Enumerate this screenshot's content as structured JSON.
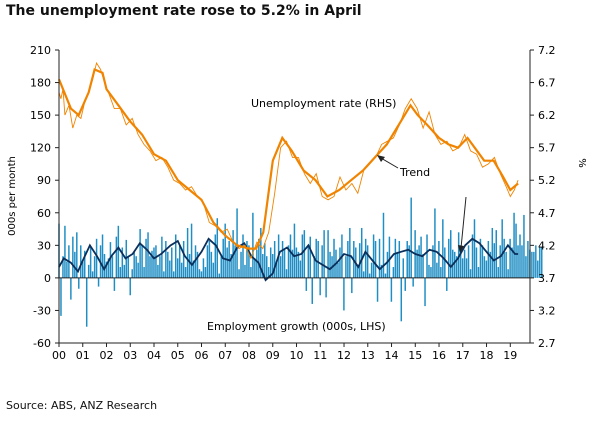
{
  "title": "The unemployment rate rose to 5.2% in April",
  "source": "Source: ABS, ANZ Research",
  "colors": {
    "unemployment": "#f08400",
    "employment_bars": "#1f8ec4",
    "trend_employment": "#0b2f5b",
    "axis": "#222222"
  },
  "chart_data": {
    "type": "bar+line",
    "title": "The unemployment rate rose to 5.2% in April",
    "xlabel": "",
    "ylabel_left": "000s per month",
    "ylabel_right": "%",
    "ylim_left": [
      -60,
      210
    ],
    "ylim_right": [
      2.7,
      7.2
    ],
    "yticks_left": [
      -60,
      -30,
      0,
      30,
      60,
      90,
      120,
      150,
      180,
      210
    ],
    "yticks_right": [
      2.7,
      3.2,
      3.7,
      4.2,
      4.7,
      5.2,
      5.7,
      6.2,
      6.7,
      7.2
    ],
    "xticks": [
      "00",
      "01",
      "02",
      "03",
      "04",
      "05",
      "06",
      "07",
      "08",
      "09",
      "10",
      "11",
      "12",
      "13",
      "14",
      "15",
      "16",
      "17",
      "18",
      "19"
    ],
    "x_range": [
      2000.0,
      2019.33
    ],
    "grid": false,
    "annotations": {
      "unemployment_label": "Unemployment rate (RHS)",
      "employment_label": "Employment growth (000s, LHS)",
      "trend_label": "Trend"
    },
    "series": [
      {
        "name": "Unemployment rate (RHS)",
        "axis": "right",
        "kind": "line",
        "trend_points": [
          [
            2000.0,
            6.75
          ],
          [
            2000.5,
            6.3
          ],
          [
            2000.83,
            6.2
          ],
          [
            2001.25,
            6.55
          ],
          [
            2001.5,
            6.9
          ],
          [
            2001.83,
            6.85
          ],
          [
            2002.0,
            6.6
          ],
          [
            2002.5,
            6.35
          ],
          [
            2003.0,
            6.1
          ],
          [
            2003.5,
            5.9
          ],
          [
            2004.0,
            5.6
          ],
          [
            2004.5,
            5.5
          ],
          [
            2005.0,
            5.2
          ],
          [
            2005.5,
            5.05
          ],
          [
            2006.0,
            4.9
          ],
          [
            2006.5,
            4.55
          ],
          [
            2007.0,
            4.35
          ],
          [
            2007.5,
            4.2
          ],
          [
            2008.0,
            4.15
          ],
          [
            2008.3,
            4.15
          ],
          [
            2008.6,
            4.4
          ],
          [
            2009.0,
            5.5
          ],
          [
            2009.4,
            5.85
          ],
          [
            2009.8,
            5.65
          ],
          [
            2010.3,
            5.35
          ],
          [
            2010.8,
            5.2
          ],
          [
            2011.3,
            4.95
          ],
          [
            2011.8,
            5.05
          ],
          [
            2012.3,
            5.2
          ],
          [
            2012.8,
            5.35
          ],
          [
            2013.3,
            5.55
          ],
          [
            2013.8,
            5.75
          ],
          [
            2014.3,
            6.05
          ],
          [
            2014.8,
            6.35
          ],
          [
            2015.1,
            6.2
          ],
          [
            2015.5,
            6.05
          ],
          [
            2016.0,
            5.85
          ],
          [
            2016.4,
            5.75
          ],
          [
            2016.8,
            5.7
          ],
          [
            2017.2,
            5.85
          ],
          [
            2017.5,
            5.7
          ],
          [
            2017.9,
            5.5
          ],
          [
            2018.3,
            5.5
          ],
          [
            2018.7,
            5.25
          ],
          [
            2019.0,
            5.05
          ],
          [
            2019.33,
            5.15
          ]
        ],
        "monthly_points": [
          [
            2000.0,
            6.55
          ],
          [
            2000.08,
            6.45
          ],
          [
            2000.17,
            6.6
          ],
          [
            2000.25,
            6.2
          ],
          [
            2000.42,
            6.35
          ],
          [
            2000.58,
            6.0
          ],
          [
            2000.75,
            6.2
          ],
          [
            2000.92,
            6.15
          ],
          [
            2001.08,
            6.4
          ],
          [
            2001.25,
            6.55
          ],
          [
            2001.42,
            6.75
          ],
          [
            2001.58,
            7.0
          ],
          [
            2001.75,
            6.9
          ],
          [
            2001.92,
            6.7
          ],
          [
            2002.08,
            6.55
          ],
          [
            2002.33,
            6.3
          ],
          [
            2002.58,
            6.3
          ],
          [
            2002.83,
            6.05
          ],
          [
            2003.08,
            6.15
          ],
          [
            2003.33,
            5.9
          ],
          [
            2003.58,
            5.75
          ],
          [
            2003.83,
            5.65
          ],
          [
            2004.08,
            5.5
          ],
          [
            2004.33,
            5.55
          ],
          [
            2004.58,
            5.4
          ],
          [
            2004.83,
            5.2
          ],
          [
            2005.08,
            5.15
          ],
          [
            2005.33,
            5.05
          ],
          [
            2005.58,
            5.1
          ],
          [
            2005.83,
            4.95
          ],
          [
            2006.08,
            4.85
          ],
          [
            2006.33,
            4.55
          ],
          [
            2006.58,
            4.5
          ],
          [
            2006.83,
            4.4
          ],
          [
            2007.08,
            4.45
          ],
          [
            2007.33,
            4.25
          ],
          [
            2007.58,
            4.15
          ],
          [
            2007.83,
            4.2
          ],
          [
            2008.08,
            4.0
          ],
          [
            2008.33,
            4.25
          ],
          [
            2008.58,
            4.15
          ],
          [
            2008.83,
            4.4
          ],
          [
            2009.08,
            5.0
          ],
          [
            2009.33,
            5.7
          ],
          [
            2009.58,
            5.8
          ],
          [
            2009.83,
            5.55
          ],
          [
            2010.08,
            5.55
          ],
          [
            2010.33,
            5.3
          ],
          [
            2010.58,
            5.15
          ],
          [
            2010.83,
            5.3
          ],
          [
            2011.08,
            4.95
          ],
          [
            2011.33,
            4.9
          ],
          [
            2011.58,
            4.95
          ],
          [
            2011.83,
            5.25
          ],
          [
            2012.08,
            5.05
          ],
          [
            2012.33,
            5.15
          ],
          [
            2012.58,
            5.0
          ],
          [
            2012.83,
            5.35
          ],
          [
            2013.08,
            5.45
          ],
          [
            2013.33,
            5.55
          ],
          [
            2013.58,
            5.75
          ],
          [
            2013.83,
            5.8
          ],
          [
            2014.08,
            5.85
          ],
          [
            2014.33,
            6.05
          ],
          [
            2014.58,
            6.3
          ],
          [
            2014.83,
            6.45
          ],
          [
            2015.08,
            6.3
          ],
          [
            2015.33,
            6.0
          ],
          [
            2015.58,
            6.25
          ],
          [
            2015.83,
            5.9
          ],
          [
            2016.08,
            5.75
          ],
          [
            2016.33,
            5.8
          ],
          [
            2016.58,
            5.65
          ],
          [
            2016.83,
            5.7
          ],
          [
            2017.08,
            5.9
          ],
          [
            2017.33,
            5.65
          ],
          [
            2017.58,
            5.6
          ],
          [
            2017.83,
            5.4
          ],
          [
            2018.08,
            5.45
          ],
          [
            2018.33,
            5.55
          ],
          [
            2018.58,
            5.3
          ],
          [
            2018.83,
            5.1
          ],
          [
            2019.0,
            4.95
          ],
          [
            2019.17,
            5.05
          ],
          [
            2019.33,
            5.2
          ]
        ]
      },
      {
        "name": "Employment growth (000s, LHS)",
        "axis": "left",
        "kind": "bar",
        "x_start": 2000.0,
        "x_step": 0.0833,
        "values": [
          50,
          -35,
          20,
          48,
          15,
          30,
          -20,
          38,
          24,
          42,
          -10,
          30,
          15,
          25,
          -45,
          12,
          28,
          6,
          20,
          36,
          -8,
          30,
          40,
          22,
          15,
          18,
          33,
          20,
          -12,
          38,
          48,
          10,
          28,
          12,
          35,
          20,
          -16,
          8,
          24,
          20,
          14,
          45,
          30,
          10,
          36,
          42,
          20,
          25,
          28,
          30,
          12,
          20,
          38,
          6,
          34,
          24,
          16,
          28,
          6,
          40,
          18,
          30,
          14,
          34,
          10,
          46,
          22,
          50,
          16,
          30,
          24,
          8,
          6,
          18,
          10,
          30,
          34,
          24,
          14,
          40,
          55,
          4,
          20,
          36,
          50,
          28,
          34,
          22,
          44,
          30,
          64,
          8,
          24,
          40,
          12,
          34,
          30,
          10,
          60,
          18,
          26,
          36,
          46,
          22,
          32,
          20,
          10,
          28,
          22,
          34,
          14,
          40,
          20,
          34,
          26,
          8,
          30,
          40,
          26,
          50,
          28,
          24,
          16,
          40,
          44,
          -12,
          30,
          38,
          -24,
          20,
          36,
          34,
          -16,
          30,
          44,
          -18,
          44,
          24,
          20,
          36,
          26,
          14,
          28,
          40,
          -30,
          20,
          34,
          46,
          -14,
          34,
          28,
          10,
          32,
          46,
          6,
          36,
          30,
          4,
          14,
          40,
          34,
          -22,
          36,
          12,
          60,
          4,
          24,
          38,
          -22,
          10,
          36,
          24,
          34,
          -40,
          18,
          -12,
          34,
          30,
          74,
          -8,
          44,
          26,
          30,
          38,
          22,
          -26,
          40,
          12,
          10,
          30,
          64,
          14,
          34,
          10,
          54,
          28,
          -12,
          36,
          44,
          26,
          24,
          20,
          42,
          30,
          18,
          26,
          18,
          30,
          8,
          40,
          54,
          28,
          10,
          36,
          30,
          20,
          16,
          34,
          24,
          46,
          32,
          44,
          10,
          30,
          54,
          36,
          24,
          8,
          36,
          28,
          60,
          50,
          30,
          40,
          30,
          58,
          20,
          34,
          26,
          24,
          24,
          30,
          16,
          28,
          28
        ]
      },
      {
        "name": "Trend",
        "axis": "left",
        "kind": "line",
        "points": [
          [
            2000.0,
            10
          ],
          [
            2000.2,
            18
          ],
          [
            2000.5,
            14
          ],
          [
            2000.8,
            6
          ],
          [
            2001.0,
            16
          ],
          [
            2001.3,
            30
          ],
          [
            2001.6,
            20
          ],
          [
            2001.9,
            8
          ],
          [
            2002.2,
            20
          ],
          [
            2002.5,
            28
          ],
          [
            2002.8,
            18
          ],
          [
            2003.1,
            22
          ],
          [
            2003.4,
            32
          ],
          [
            2003.7,
            26
          ],
          [
            2004.0,
            18
          ],
          [
            2004.3,
            22
          ],
          [
            2004.7,
            30
          ],
          [
            2005.0,
            34
          ],
          [
            2005.3,
            20
          ],
          [
            2005.6,
            12
          ],
          [
            2006.0,
            24
          ],
          [
            2006.3,
            36
          ],
          [
            2006.6,
            30
          ],
          [
            2006.9,
            18
          ],
          [
            2007.2,
            16
          ],
          [
            2007.5,
            28
          ],
          [
            2007.8,
            32
          ],
          [
            2008.1,
            20
          ],
          [
            2008.4,
            14
          ],
          [
            2008.7,
            -2
          ],
          [
            2009.0,
            4
          ],
          [
            2009.3,
            24
          ],
          [
            2009.6,
            28
          ],
          [
            2009.9,
            20
          ],
          [
            2010.2,
            22
          ],
          [
            2010.5,
            30
          ],
          [
            2010.8,
            16
          ],
          [
            2011.1,
            12
          ],
          [
            2011.4,
            8
          ],
          [
            2011.7,
            14
          ],
          [
            2012.0,
            22
          ],
          [
            2012.3,
            20
          ],
          [
            2012.6,
            10
          ],
          [
            2012.9,
            24
          ],
          [
            2013.2,
            16
          ],
          [
            2013.5,
            8
          ],
          [
            2013.8,
            14
          ],
          [
            2014.1,
            22
          ],
          [
            2014.4,
            24
          ],
          [
            2014.7,
            26
          ],
          [
            2015.0,
            22
          ],
          [
            2015.3,
            20
          ],
          [
            2015.6,
            26
          ],
          [
            2015.9,
            24
          ],
          [
            2016.2,
            18
          ],
          [
            2016.5,
            10
          ],
          [
            2016.8,
            18
          ],
          [
            2017.1,
            30
          ],
          [
            2017.4,
            36
          ],
          [
            2017.7,
            32
          ],
          [
            2018.0,
            24
          ],
          [
            2018.3,
            16
          ],
          [
            2018.6,
            20
          ],
          [
            2018.9,
            30
          ],
          [
            2019.2,
            22
          ],
          [
            2019.33,
            22
          ]
        ]
      }
    ]
  }
}
